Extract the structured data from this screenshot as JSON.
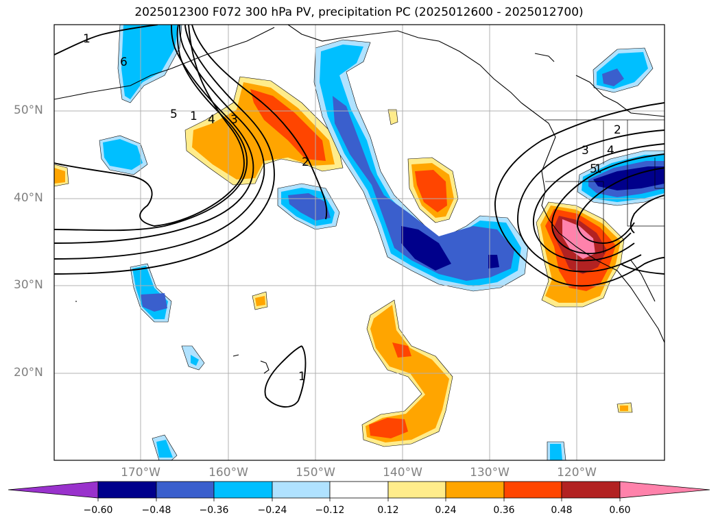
{
  "title": "2025012300 F072 300 hPa PV, precipitation PC (2025012600 - 2025012700)",
  "lat_labels": [
    "50°N",
    "40°N",
    "30°N",
    "20°N"
  ],
  "lon_labels": [
    "170°W",
    "160°W",
    "150°W",
    "140°W",
    "130°W",
    "120°W"
  ],
  "colorbar": {
    "ticks": [
      "−0.60",
      "−0.48",
      "−0.36",
      "−0.24",
      "−0.12",
      "0.12",
      "0.24",
      "0.36",
      "0.48",
      "0.60"
    ],
    "colors": [
      "#9932cc",
      "#00008b",
      "#3a5fcd",
      "#00bfff",
      "#b0e2ff",
      "#ffffff",
      "#ffec8b",
      "#ffa500",
      "#ff4500",
      "#b22222",
      "#ff82ab"
    ]
  },
  "contour_labels": [
    "1",
    "2",
    "3",
    "4",
    "5",
    "6",
    "1",
    "2",
    "3",
    "4",
    "5",
    "1",
    "1"
  ]
}
